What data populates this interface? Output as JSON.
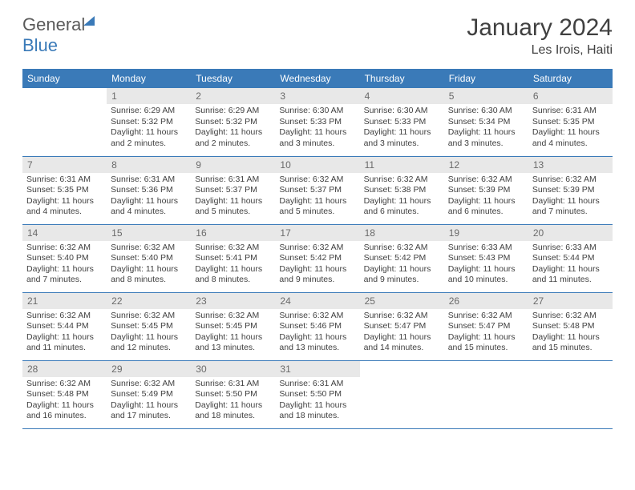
{
  "brand": {
    "part1": "General",
    "part2": "Blue"
  },
  "title": "January 2024",
  "location": "Les Irois, Haiti",
  "colors": {
    "header_bg": "#3a7ab8",
    "header_text": "#ffffff",
    "daynum_bg": "#e8e8e8",
    "daynum_text": "#6a6a6a",
    "body_text": "#404040",
    "rule": "#3a7ab8"
  },
  "dow": [
    "Sunday",
    "Monday",
    "Tuesday",
    "Wednesday",
    "Thursday",
    "Friday",
    "Saturday"
  ],
  "weeks": [
    [
      {
        "n": "",
        "sr": "",
        "ss": "",
        "dl": "",
        "empty": true
      },
      {
        "n": "1",
        "sr": "Sunrise: 6:29 AM",
        "ss": "Sunset: 5:32 PM",
        "dl": "Daylight: 11 hours and 2 minutes."
      },
      {
        "n": "2",
        "sr": "Sunrise: 6:29 AM",
        "ss": "Sunset: 5:32 PM",
        "dl": "Daylight: 11 hours and 2 minutes."
      },
      {
        "n": "3",
        "sr": "Sunrise: 6:30 AM",
        "ss": "Sunset: 5:33 PM",
        "dl": "Daylight: 11 hours and 3 minutes."
      },
      {
        "n": "4",
        "sr": "Sunrise: 6:30 AM",
        "ss": "Sunset: 5:33 PM",
        "dl": "Daylight: 11 hours and 3 minutes."
      },
      {
        "n": "5",
        "sr": "Sunrise: 6:30 AM",
        "ss": "Sunset: 5:34 PM",
        "dl": "Daylight: 11 hours and 3 minutes."
      },
      {
        "n": "6",
        "sr": "Sunrise: 6:31 AM",
        "ss": "Sunset: 5:35 PM",
        "dl": "Daylight: 11 hours and 4 minutes."
      }
    ],
    [
      {
        "n": "7",
        "sr": "Sunrise: 6:31 AM",
        "ss": "Sunset: 5:35 PM",
        "dl": "Daylight: 11 hours and 4 minutes."
      },
      {
        "n": "8",
        "sr": "Sunrise: 6:31 AM",
        "ss": "Sunset: 5:36 PM",
        "dl": "Daylight: 11 hours and 4 minutes."
      },
      {
        "n": "9",
        "sr": "Sunrise: 6:31 AM",
        "ss": "Sunset: 5:37 PM",
        "dl": "Daylight: 11 hours and 5 minutes."
      },
      {
        "n": "10",
        "sr": "Sunrise: 6:32 AM",
        "ss": "Sunset: 5:37 PM",
        "dl": "Daylight: 11 hours and 5 minutes."
      },
      {
        "n": "11",
        "sr": "Sunrise: 6:32 AM",
        "ss": "Sunset: 5:38 PM",
        "dl": "Daylight: 11 hours and 6 minutes."
      },
      {
        "n": "12",
        "sr": "Sunrise: 6:32 AM",
        "ss": "Sunset: 5:39 PM",
        "dl": "Daylight: 11 hours and 6 minutes."
      },
      {
        "n": "13",
        "sr": "Sunrise: 6:32 AM",
        "ss": "Sunset: 5:39 PM",
        "dl": "Daylight: 11 hours and 7 minutes."
      }
    ],
    [
      {
        "n": "14",
        "sr": "Sunrise: 6:32 AM",
        "ss": "Sunset: 5:40 PM",
        "dl": "Daylight: 11 hours and 7 minutes."
      },
      {
        "n": "15",
        "sr": "Sunrise: 6:32 AM",
        "ss": "Sunset: 5:40 PM",
        "dl": "Daylight: 11 hours and 8 minutes."
      },
      {
        "n": "16",
        "sr": "Sunrise: 6:32 AM",
        "ss": "Sunset: 5:41 PM",
        "dl": "Daylight: 11 hours and 8 minutes."
      },
      {
        "n": "17",
        "sr": "Sunrise: 6:32 AM",
        "ss": "Sunset: 5:42 PM",
        "dl": "Daylight: 11 hours and 9 minutes."
      },
      {
        "n": "18",
        "sr": "Sunrise: 6:32 AM",
        "ss": "Sunset: 5:42 PM",
        "dl": "Daylight: 11 hours and 9 minutes."
      },
      {
        "n": "19",
        "sr": "Sunrise: 6:33 AM",
        "ss": "Sunset: 5:43 PM",
        "dl": "Daylight: 11 hours and 10 minutes."
      },
      {
        "n": "20",
        "sr": "Sunrise: 6:33 AM",
        "ss": "Sunset: 5:44 PM",
        "dl": "Daylight: 11 hours and 11 minutes."
      }
    ],
    [
      {
        "n": "21",
        "sr": "Sunrise: 6:32 AM",
        "ss": "Sunset: 5:44 PM",
        "dl": "Daylight: 11 hours and 11 minutes."
      },
      {
        "n": "22",
        "sr": "Sunrise: 6:32 AM",
        "ss": "Sunset: 5:45 PM",
        "dl": "Daylight: 11 hours and 12 minutes."
      },
      {
        "n": "23",
        "sr": "Sunrise: 6:32 AM",
        "ss": "Sunset: 5:45 PM",
        "dl": "Daylight: 11 hours and 13 minutes."
      },
      {
        "n": "24",
        "sr": "Sunrise: 6:32 AM",
        "ss": "Sunset: 5:46 PM",
        "dl": "Daylight: 11 hours and 13 minutes."
      },
      {
        "n": "25",
        "sr": "Sunrise: 6:32 AM",
        "ss": "Sunset: 5:47 PM",
        "dl": "Daylight: 11 hours and 14 minutes."
      },
      {
        "n": "26",
        "sr": "Sunrise: 6:32 AM",
        "ss": "Sunset: 5:47 PM",
        "dl": "Daylight: 11 hours and 15 minutes."
      },
      {
        "n": "27",
        "sr": "Sunrise: 6:32 AM",
        "ss": "Sunset: 5:48 PM",
        "dl": "Daylight: 11 hours and 15 minutes."
      }
    ],
    [
      {
        "n": "28",
        "sr": "Sunrise: 6:32 AM",
        "ss": "Sunset: 5:48 PM",
        "dl": "Daylight: 11 hours and 16 minutes."
      },
      {
        "n": "29",
        "sr": "Sunrise: 6:32 AM",
        "ss": "Sunset: 5:49 PM",
        "dl": "Daylight: 11 hours and 17 minutes."
      },
      {
        "n": "30",
        "sr": "Sunrise: 6:31 AM",
        "ss": "Sunset: 5:50 PM",
        "dl": "Daylight: 11 hours and 18 minutes."
      },
      {
        "n": "31",
        "sr": "Sunrise: 6:31 AM",
        "ss": "Sunset: 5:50 PM",
        "dl": "Daylight: 11 hours and 18 minutes."
      },
      {
        "n": "",
        "sr": "",
        "ss": "",
        "dl": "",
        "empty": true
      },
      {
        "n": "",
        "sr": "",
        "ss": "",
        "dl": "",
        "empty": true
      },
      {
        "n": "",
        "sr": "",
        "ss": "",
        "dl": "",
        "empty": true
      }
    ]
  ]
}
